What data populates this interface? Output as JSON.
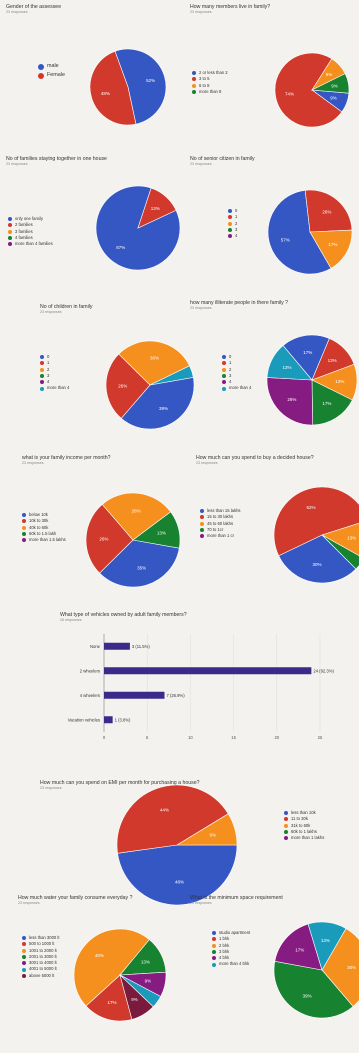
{
  "colors": {
    "blue": "#3557c4",
    "red": "#d0392b",
    "orange": "#f5901e",
    "green": "#17822f",
    "purple": "#861b82",
    "teal": "#1a9bbb",
    "maroon": "#7a1a3c",
    "bar": "#3c2a8a"
  },
  "chart_data": [
    {
      "id": "gender",
      "type": "pie",
      "title": "Gender of the assessee",
      "subtitle": "23 responses",
      "labels": [
        "male",
        "Female"
      ],
      "colors": [
        "#3557c4",
        "#d0392b"
      ],
      "values": [
        52.2,
        47.8
      ],
      "slice_labels": [
        "52%",
        "48%"
      ]
    },
    {
      "id": "members",
      "type": "pie",
      "title": "How many members live in family?",
      "subtitle": "23 responses",
      "labels": [
        "2 or less than 2",
        "3 to 5",
        "6 to 8",
        "more than 8"
      ],
      "colors": [
        "#3557c4",
        "#d0392b",
        "#f5901e",
        "#17822f"
      ],
      "values": [
        8.7,
        73.9,
        8.7,
        8.7
      ],
      "slice_labels": [
        "9%",
        "74%",
        "9%",
        "9%"
      ]
    },
    {
      "id": "families",
      "type": "pie",
      "title": "No of families staying together in one house",
      "subtitle": "23 responses",
      "labels": [
        "only one family",
        "2 families",
        "3 families",
        "4 families",
        "more than 4 families"
      ],
      "colors": [
        "#3557c4",
        "#d0392b",
        "#f5901e",
        "#17822f",
        "#861b82"
      ],
      "values": [
        87,
        13,
        0,
        0,
        0
      ],
      "slice_labels": [
        "87%",
        "13%",
        "",
        "",
        ""
      ]
    },
    {
      "id": "seniors",
      "type": "pie",
      "title": "No of senior citizen in family",
      "subtitle": "23 responses",
      "labels": [
        "0",
        "1",
        "2",
        "3",
        "4"
      ],
      "colors": [
        "#3557c4",
        "#d0392b",
        "#f5901e",
        "#17822f",
        "#861b82"
      ],
      "values": [
        56.5,
        26.1,
        17.4,
        0,
        0
      ],
      "slice_labels": [
        "57%",
        "26%",
        "17%",
        "",
        ""
      ]
    },
    {
      "id": "children",
      "type": "pie",
      "title": "No of children in family",
      "subtitle": "23 responses",
      "labels": [
        "0",
        "1",
        "2",
        "3",
        "4",
        "more than 4"
      ],
      "colors": [
        "#3557c4",
        "#d0392b",
        "#f5901e",
        "#17822f",
        "#861b82",
        "#1a9bbb"
      ],
      "values": [
        39.1,
        26.1,
        30.4,
        0,
        0,
        4.4
      ],
      "slice_labels": [
        "39%",
        "26%",
        "30%",
        "",
        "",
        ""
      ]
    },
    {
      "id": "literate",
      "type": "pie",
      "title": "how many illiterate people in there family ?",
      "subtitle": "23 responses",
      "labels": [
        "0",
        "1",
        "2",
        "3",
        "4",
        "more than 4"
      ],
      "colors": [
        "#3557c4",
        "#d0392b",
        "#f5901e",
        "#17822f",
        "#861b82",
        "#1a9bbb"
      ],
      "values": [
        17.4,
        13,
        13,
        17.4,
        26.1,
        13
      ],
      "slice_labels": [
        "17%",
        "13%",
        "13%",
        "17%",
        "26%",
        "13%"
      ]
    },
    {
      "id": "income",
      "type": "pie",
      "title": "what is your family income per month?",
      "subtitle": "23 responses",
      "labels": [
        "below 10k",
        "10k to 30k",
        "40k to 60k",
        "60k to 1.5 lakh",
        "more than 1.5 lakhs"
      ],
      "colors": [
        "#3557c4",
        "#d0392b",
        "#f5901e",
        "#17822f",
        "#861b82"
      ],
      "values": [
        34.8,
        26.1,
        26.1,
        13,
        0
      ],
      "slice_labels": [
        "35%",
        "26%",
        "26%",
        "13%",
        ""
      ]
    },
    {
      "id": "spend",
      "type": "pie",
      "title": "How much can you spend to buy a decided house?",
      "subtitle": "23 responses",
      "labels": [
        "less than 15 lakhs",
        "15 to 30 lakhs",
        "45 to 60 lakhs",
        "70 to 1cr",
        "more than 1 cr"
      ],
      "colors": [
        "#3557c4",
        "#d0392b",
        "#f5901e",
        "#17822f",
        "#861b82"
      ],
      "values": [
        30.4,
        52.2,
        13,
        4.4,
        0
      ],
      "slice_labels": [
        "30%",
        "52%",
        "13%",
        "",
        ""
      ]
    },
    {
      "id": "vehicles",
      "type": "bar",
      "orientation": "horizontal",
      "title": "What type of vehicles owned by adult family members?",
      "subtitle": "26 responses",
      "categories": [
        "None",
        "2 wheelers",
        "4 wheelers",
        "Vacation vehicles"
      ],
      "values": [
        3,
        24,
        7,
        1
      ],
      "bar_labels": [
        "3 (11.5%)",
        "24 (92.3%)",
        "7 (26.9%)",
        "1 (3.8%)"
      ],
      "xlim": [
        0,
        25
      ],
      "xticks": [
        0,
        5,
        10,
        15,
        20,
        25
      ]
    },
    {
      "id": "emi",
      "type": "pie",
      "title": "How much can you spend on EMI per month for purchasing a house?",
      "subtitle": "23 responses",
      "labels": [
        "less than 10k",
        "11 to 30k",
        "31k to 60k",
        "60k to 1 lakhs",
        "more than 1 lakhs"
      ],
      "colors": [
        "#3557c4",
        "#d0392b",
        "#f5901e",
        "#17822f",
        "#861b82"
      ],
      "values": [
        47.8,
        43.5,
        8.7,
        0,
        0
      ],
      "slice_labels": [
        "48%",
        "44%",
        "9%",
        "",
        ""
      ]
    },
    {
      "id": "water",
      "type": "pie",
      "title": "How much water your family consume everyday ?",
      "subtitle": "23 responses",
      "labels": [
        "less than 3000 lt",
        "500 to 1000 lt",
        "1001 to 2000 lt",
        "2001 to 3000 lt",
        "3001 to 4000 lt",
        "4001 to 5000 lt",
        "above 5000 lt"
      ],
      "colors": [
        "#3557c4",
        "#d0392b",
        "#f5901e",
        "#17822f",
        "#861b82",
        "#1a9bbb",
        "#7a1a3c"
      ],
      "values": [
        0,
        17.4,
        47.8,
        13,
        8.7,
        4.4,
        8.7
      ],
      "slice_labels": [
        "",
        "17%",
        "48%",
        "13%",
        "9%",
        "",
        "9%"
      ]
    },
    {
      "id": "space",
      "type": "pie",
      "title": "What is the minimum space requirement",
      "subtitle": "23 responses",
      "labels": [
        "studio apartment",
        "1 bhk",
        "2 bhk",
        "3 bhk",
        "4 bhk",
        "more than 4 bhk"
      ],
      "colors": [
        "#3557c4",
        "#d0392b",
        "#f5901e",
        "#17822f",
        "#861b82",
        "#1a9bbb"
      ],
      "values": [
        0,
        0,
        30.4,
        39.1,
        17.4,
        13
      ],
      "slice_labels": [
        "",
        "",
        "30%",
        "39%",
        "17%",
        "13%"
      ]
    }
  ]
}
